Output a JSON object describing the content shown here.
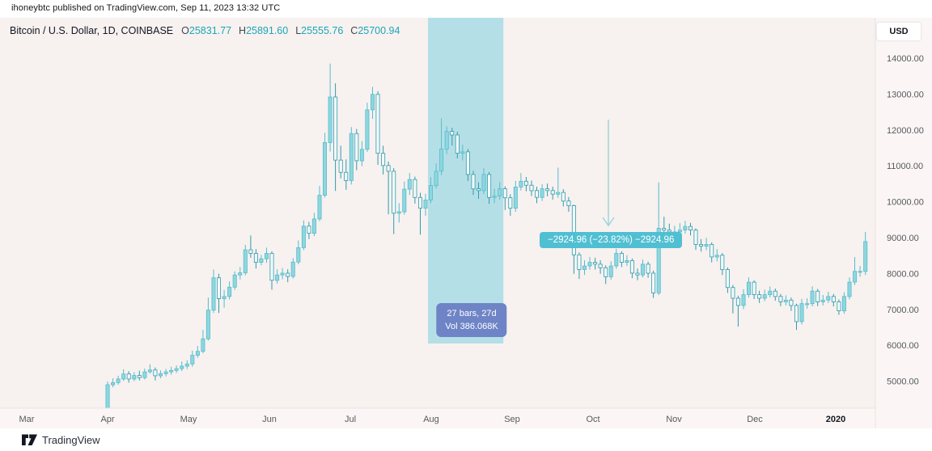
{
  "attribution": "ihoneybtc published on TradingView.com, Sep 11, 2023 13:32 UTC",
  "header": {
    "title": "Bitcoin / U.S. Dollar, 1D, COINBASE",
    "ohlc": [
      {
        "label": "O",
        "value": "25831.77"
      },
      {
        "label": "H",
        "value": "25891.60"
      },
      {
        "label": "L",
        "value": "25555.76"
      },
      {
        "label": "C",
        "value": "25700.94"
      }
    ]
  },
  "currency": {
    "label": "USD"
  },
  "annotations": {
    "change_label": "−2924.96 (−23.82%) −2924.96",
    "range_line1": "27 bars, 27d",
    "range_line2": "Vol 386.068K"
  },
  "footer": {
    "brand": "TradingView"
  },
  "colors": {
    "accent_teal": "#1ba7b5",
    "band": "#7fcfe0",
    "up_fill": "#8ed7e0",
    "up_stroke": "#56bdca",
    "down_fill": "#f3fafb",
    "down_stroke": "#2f9cab",
    "arrow": "#9ad4d8",
    "tooltip_bg": "#50bfd2",
    "range_label_bg": "#6e84c6",
    "axis_text": "#55585f",
    "axis_strip": "#fbf6f5",
    "axis_line": "#e8e1e0",
    "chart_bg": "#f7f1f0"
  },
  "chart_data": {
    "type": "candlestick",
    "symbol": "Bitcoin / U.S. Dollar",
    "interval": "1D",
    "exchange": "COINBASE",
    "x_ticks": [
      "Mar",
      "Apr",
      "May",
      "Jun",
      "Jul",
      "Aug",
      "Sep",
      "Oct",
      "Nov",
      "Dec",
      "2020"
    ],
    "y_ticks": [
      "14000.00",
      "13000.00",
      "12000.00",
      "11000.00",
      "10000.00",
      "9000.00",
      "8000.00",
      "7000.00",
      "6000.00",
      "5000.00"
    ],
    "ylim": [
      4000,
      14500
    ],
    "grid": false,
    "legend": "none",
    "highlight_band": {
      "from_bar": 62,
      "to_bar": 75
    },
    "candles": [
      [
        4110,
        4990,
        4080,
        4900
      ],
      [
        4900,
        5080,
        4830,
        4960
      ],
      [
        4960,
        5150,
        4900,
        5060
      ],
      [
        5060,
        5330,
        5010,
        5200
      ],
      [
        5200,
        5280,
        4960,
        5060
      ],
      [
        5060,
        5250,
        5000,
        5160
      ],
      [
        5160,
        5290,
        5020,
        5100
      ],
      [
        5100,
        5350,
        5050,
        5260
      ],
      [
        5260,
        5470,
        5210,
        5310
      ],
      [
        5310,
        5380,
        5020,
        5150
      ],
      [
        5150,
        5300,
        5080,
        5210
      ],
      [
        5210,
        5340,
        5130,
        5260
      ],
      [
        5260,
        5400,
        5180,
        5300
      ],
      [
        5300,
        5440,
        5230,
        5350
      ],
      [
        5350,
        5550,
        5280,
        5420
      ],
      [
        5420,
        5580,
        5340,
        5480
      ],
      [
        5480,
        5850,
        5400,
        5720
      ],
      [
        5720,
        5980,
        5650,
        5830
      ],
      [
        5830,
        6430,
        5780,
        6180
      ],
      [
        6180,
        7330,
        6130,
        6980
      ],
      [
        6980,
        8110,
        6900,
        7880
      ],
      [
        7880,
        7990,
        6900,
        7300
      ],
      [
        7300,
        7540,
        7050,
        7360
      ],
      [
        7360,
        7780,
        7280,
        7620
      ],
      [
        7620,
        8060,
        7540,
        7960
      ],
      [
        7960,
        8180,
        7830,
        8020
      ],
      [
        8020,
        8800,
        7950,
        8660
      ],
      [
        8660,
        9060,
        8440,
        8560
      ],
      [
        8560,
        8680,
        8140,
        8310
      ],
      [
        8310,
        8520,
        8230,
        8410
      ],
      [
        8410,
        8720,
        8300,
        8560
      ],
      [
        8560,
        8620,
        7550,
        7810
      ],
      [
        7810,
        8120,
        7720,
        7960
      ],
      [
        7960,
        8150,
        7840,
        8010
      ],
      [
        8010,
        8120,
        7760,
        7920
      ],
      [
        7920,
        8430,
        7860,
        8320
      ],
      [
        8320,
        8920,
        8260,
        8720
      ],
      [
        8720,
        9480,
        8650,
        9320
      ],
      [
        9320,
        9440,
        8960,
        9120
      ],
      [
        9120,
        9690,
        9040,
        9520
      ],
      [
        9520,
        10440,
        9460,
        10180
      ],
      [
        10180,
        11920,
        10120,
        11650
      ],
      [
        11650,
        13850,
        11400,
        12920
      ],
      [
        12920,
        13300,
        10300,
        11160
      ],
      [
        11160,
        11560,
        10650,
        10820
      ],
      [
        10820,
        11180,
        10330,
        10590
      ],
      [
        10590,
        12080,
        10480,
        11900
      ],
      [
        11900,
        12030,
        10880,
        11140
      ],
      [
        11140,
        11690,
        10990,
        11460
      ],
      [
        11460,
        12760,
        11390,
        12560
      ],
      [
        12560,
        13200,
        12310,
        12990
      ],
      [
        12990,
        13080,
        11030,
        11350
      ],
      [
        11350,
        11560,
        10760,
        11010
      ],
      [
        11010,
        11120,
        9650,
        10850
      ],
      [
        10850,
        10940,
        9100,
        9680
      ],
      [
        9680,
        9960,
        9420,
        9720
      ],
      [
        9720,
        10560,
        9640,
        10350
      ],
      [
        10350,
        10800,
        10190,
        10620
      ],
      [
        10620,
        10700,
        9950,
        10120
      ],
      [
        10120,
        10250,
        9080,
        9820
      ],
      [
        9820,
        10220,
        9610,
        10050
      ],
      [
        10050,
        10680,
        9960,
        10450
      ],
      [
        10450,
        11070,
        10370,
        10850
      ],
      [
        10850,
        12320,
        10740,
        11470
      ],
      [
        11470,
        12100,
        11330,
        11960
      ],
      [
        11960,
        12060,
        11560,
        11860
      ],
      [
        11860,
        11950,
        11210,
        11350
      ],
      [
        11350,
        11590,
        11150,
        11390
      ],
      [
        11390,
        11470,
        10580,
        10760
      ],
      [
        10760,
        10860,
        10190,
        10360
      ],
      [
        10360,
        10540,
        10080,
        10310
      ],
      [
        10310,
        10940,
        10210,
        10760
      ],
      [
        10760,
        10830,
        9940,
        10120
      ],
      [
        10120,
        10360,
        9960,
        10160
      ],
      [
        10160,
        10550,
        10060,
        10360
      ],
      [
        10360,
        10430,
        9770,
        10110
      ],
      [
        10110,
        10210,
        9610,
        9820
      ],
      [
        9820,
        10580,
        9720,
        10410
      ],
      [
        10410,
        10800,
        10310,
        10570
      ],
      [
        10570,
        10690,
        10290,
        10460
      ],
      [
        10460,
        10590,
        10160,
        10310
      ],
      [
        10310,
        10420,
        9960,
        10120
      ],
      [
        10120,
        10490,
        10020,
        10360
      ],
      [
        10360,
        10510,
        10150,
        10310
      ],
      [
        10310,
        10420,
        10060,
        10210
      ],
      [
        10210,
        10950,
        10110,
        10260
      ],
      [
        10260,
        10350,
        9870,
        10020
      ],
      [
        10020,
        10130,
        9720,
        9890
      ],
      [
        9890,
        9920,
        7990,
        8520
      ],
      [
        8520,
        8590,
        7850,
        8110
      ],
      [
        8110,
        8370,
        7960,
        8210
      ],
      [
        8210,
        8460,
        8110,
        8310
      ],
      [
        8310,
        8440,
        8110,
        8260
      ],
      [
        8260,
        8370,
        7990,
        8160
      ],
      [
        8160,
        8230,
        7710,
        7910
      ],
      [
        7910,
        8340,
        7830,
        8210
      ],
      [
        8210,
        8690,
        8130,
        8560
      ],
      [
        8560,
        8620,
        8180,
        8310
      ],
      [
        8310,
        8510,
        8210,
        8360
      ],
      [
        8360,
        8420,
        7870,
        8010
      ],
      [
        8010,
        8140,
        7810,
        7960
      ],
      [
        7960,
        8390,
        7890,
        8260
      ],
      [
        8260,
        8330,
        7880,
        8010
      ],
      [
        8010,
        8080,
        7320,
        7460
      ],
      [
        7460,
        10540,
        7400,
        9260
      ],
      [
        9260,
        9580,
        8980,
        9210
      ],
      [
        9210,
        9390,
        8990,
        9160
      ],
      [
        9160,
        9330,
        9010,
        9160
      ],
      [
        9160,
        9400,
        9040,
        9210
      ],
      [
        9210,
        9470,
        9110,
        9310
      ],
      [
        9310,
        9410,
        9060,
        9210
      ],
      [
        9210,
        9260,
        8660,
        8810
      ],
      [
        8810,
        8960,
        8610,
        8760
      ],
      [
        8760,
        8990,
        8650,
        8810
      ],
      [
        8810,
        8870,
        8310,
        8460
      ],
      [
        8460,
        8680,
        8340,
        8510
      ],
      [
        8510,
        8570,
        7960,
        8110
      ],
      [
        8110,
        8170,
        7460,
        7610
      ],
      [
        7610,
        7680,
        6890,
        7310
      ],
      [
        7310,
        7380,
        6520,
        7110
      ],
      [
        7110,
        7560,
        7010,
        7410
      ],
      [
        7410,
        7890,
        7330,
        7760
      ],
      [
        7760,
        7810,
        7290,
        7410
      ],
      [
        7410,
        7520,
        7180,
        7310
      ],
      [
        7310,
        7550,
        7230,
        7410
      ],
      [
        7410,
        7640,
        7330,
        7510
      ],
      [
        7510,
        7580,
        7240,
        7360
      ],
      [
        7360,
        7430,
        7090,
        7210
      ],
      [
        7210,
        7390,
        7110,
        7260
      ],
      [
        7260,
        7330,
        6960,
        7110
      ],
      [
        7110,
        7160,
        6430,
        6660
      ],
      [
        6660,
        7290,
        6580,
        7160
      ],
      [
        7160,
        7310,
        7020,
        7160
      ],
      [
        7160,
        7640,
        7080,
        7510
      ],
      [
        7510,
        7570,
        7090,
        7210
      ],
      [
        7210,
        7400,
        7110,
        7260
      ],
      [
        7260,
        7490,
        7180,
        7360
      ],
      [
        7360,
        7430,
        7080,
        7210
      ],
      [
        7210,
        7280,
        6850,
        6960
      ],
      [
        6960,
        7480,
        6880,
        7360
      ],
      [
        7360,
        7890,
        7280,
        7760
      ],
      [
        7760,
        8460,
        7680,
        8060
      ],
      [
        8060,
        8210,
        7910,
        8060
      ],
      [
        8060,
        9160,
        7960,
        8890
      ]
    ]
  }
}
